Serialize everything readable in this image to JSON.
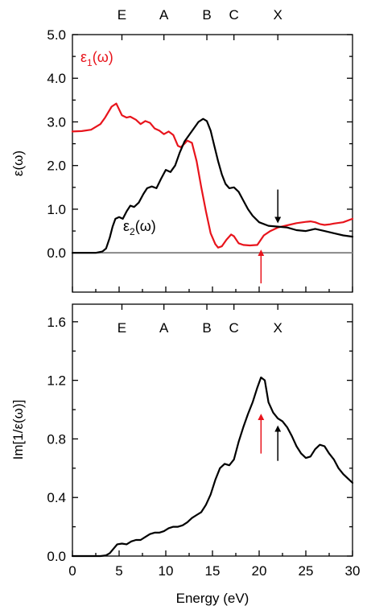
{
  "chart_data": [
    {
      "type": "line",
      "panel": "top",
      "ylabel": "ε(ω)",
      "xlim": [
        0,
        30
      ],
      "ylim": [
        -0.9,
        5.0
      ],
      "yticks": [
        0.0,
        1.0,
        2.0,
        3.0,
        4.0,
        5.0
      ],
      "ytick_labels": [
        "0.0",
        "1.0",
        "2.0",
        "3.0",
        "4.0",
        "5.0"
      ],
      "top_markers": [
        {
          "label": "E",
          "x": 5.3
        },
        {
          "label": "A",
          "x": 9.8
        },
        {
          "label": "B",
          "x": 14.4
        },
        {
          "label": "C",
          "x": 17.3
        },
        {
          "label": "X",
          "x": 22.0
        }
      ],
      "series": [
        {
          "name": "ε1(ω)",
          "label_parts": [
            "ε",
            "1",
            "(ω)"
          ],
          "color": "#e8141c",
          "x": [
            0,
            1,
            2,
            3,
            3.5,
            4.2,
            4.7,
            5.3,
            5.8,
            6.2,
            6.8,
            7.3,
            7.8,
            8.3,
            8.8,
            9.3,
            9.8,
            10.3,
            10.8,
            11.3,
            11.6,
            12.0,
            12.3,
            12.8,
            13.3,
            13.8,
            14.3,
            14.8,
            15.3,
            15.6,
            16.0,
            16.5,
            17.0,
            17.3,
            17.8,
            18.3,
            19.0,
            19.8,
            20.5,
            21.2,
            22.0,
            23.0,
            24.0,
            25.0,
            25.5,
            26.0,
            26.5,
            27.0,
            27.5,
            28.0,
            29.0,
            30.0
          ],
          "y": [
            2.78,
            2.79,
            2.82,
            2.95,
            3.1,
            3.35,
            3.42,
            3.15,
            3.1,
            3.12,
            3.05,
            2.95,
            3.02,
            2.98,
            2.85,
            2.8,
            2.72,
            2.78,
            2.7,
            2.45,
            2.42,
            2.5,
            2.57,
            2.52,
            2.1,
            1.5,
            0.95,
            0.45,
            0.2,
            0.12,
            0.15,
            0.3,
            0.42,
            0.38,
            0.22,
            0.18,
            0.17,
            0.18,
            0.4,
            0.5,
            0.58,
            0.63,
            0.68,
            0.71,
            0.72,
            0.7,
            0.66,
            0.64,
            0.65,
            0.67,
            0.7,
            0.78
          ]
        },
        {
          "name": "ε2(ω)",
          "label_parts": [
            "ε",
            "2",
            "(ω)"
          ],
          "color": "#000000",
          "x": [
            0,
            2.5,
            3.2,
            3.6,
            4.0,
            4.3,
            4.6,
            5.0,
            5.4,
            5.8,
            6.2,
            6.6,
            7.1,
            7.6,
            8.0,
            8.5,
            9.0,
            9.5,
            10.0,
            10.5,
            11.0,
            11.5,
            12.0,
            12.5,
            13.0,
            13.5,
            14.0,
            14.4,
            14.8,
            15.2,
            15.6,
            16.0,
            16.4,
            16.8,
            17.3,
            17.8,
            18.3,
            18.8,
            19.3,
            20.0,
            21.0,
            22.0,
            23.0,
            24.0,
            25.0,
            26.0,
            27.0,
            28.0,
            29.0,
            30.0
          ],
          "y": [
            0.0,
            0.0,
            0.03,
            0.1,
            0.35,
            0.6,
            0.78,
            0.82,
            0.78,
            0.95,
            1.08,
            1.05,
            1.15,
            1.35,
            1.48,
            1.52,
            1.48,
            1.7,
            1.9,
            1.85,
            2.0,
            2.3,
            2.55,
            2.7,
            2.85,
            3.0,
            3.07,
            3.02,
            2.8,
            2.45,
            2.1,
            1.8,
            1.58,
            1.48,
            1.5,
            1.4,
            1.2,
            1.0,
            0.85,
            0.7,
            0.62,
            0.6,
            0.58,
            0.52,
            0.5,
            0.55,
            0.5,
            0.45,
            0.4,
            0.37
          ]
        }
      ],
      "reference_lines": [
        {
          "y": 0.0,
          "color": "#888888"
        }
      ],
      "annotations": [
        {
          "type": "arrow",
          "direction": "up",
          "x": 20.2,
          "y_from": -0.7,
          "y_to": 0.0,
          "color": "#e8141c"
        },
        {
          "type": "arrow",
          "direction": "down",
          "x": 22.0,
          "y_from": 1.45,
          "y_to": 0.75,
          "color": "#000000"
        }
      ]
    },
    {
      "type": "line",
      "panel": "bottom",
      "xlabel": "Energy (eV)",
      "ylabel": "Im[1/ε(ω)]",
      "xlim": [
        0,
        30
      ],
      "ylim": [
        0.0,
        1.72
      ],
      "xticks": [
        0,
        5,
        10,
        15,
        20,
        25,
        30
      ],
      "xtick_labels": [
        "0",
        "5",
        "10",
        "15",
        "20",
        "25",
        "30"
      ],
      "yticks": [
        0.0,
        0.4,
        0.8,
        1.2,
        1.6
      ],
      "ytick_labels": [
        "0.0",
        "0.4",
        "0.8",
        "1.2",
        "1.6"
      ],
      "top_markers": [
        {
          "label": "E",
          "x": 5.3
        },
        {
          "label": "A",
          "x": 9.8
        },
        {
          "label": "B",
          "x": 14.4
        },
        {
          "label": "C",
          "x": 17.3
        },
        {
          "label": "X",
          "x": 22.0
        }
      ],
      "series": [
        {
          "color": "#000000",
          "x": [
            0,
            3.0,
            3.6,
            4.0,
            4.4,
            4.8,
            5.3,
            5.8,
            6.3,
            6.8,
            7.3,
            7.8,
            8.3,
            8.8,
            9.3,
            9.8,
            10.3,
            10.8,
            11.3,
            11.8,
            12.3,
            12.8,
            13.3,
            13.8,
            14.3,
            14.8,
            15.3,
            15.8,
            16.3,
            16.8,
            17.3,
            17.8,
            18.3,
            18.8,
            19.3,
            19.8,
            20.2,
            20.6,
            21.0,
            21.5,
            22.0,
            22.5,
            23.0,
            23.5,
            24.0,
            24.5,
            25.0,
            25.5,
            26.0,
            26.5,
            27.0,
            27.5,
            28.0,
            28.5,
            29.0,
            29.5,
            30.0
          ],
          "y": [
            0.0,
            0.0,
            0.005,
            0.02,
            0.05,
            0.08,
            0.085,
            0.08,
            0.1,
            0.11,
            0.11,
            0.13,
            0.15,
            0.16,
            0.16,
            0.17,
            0.19,
            0.2,
            0.2,
            0.21,
            0.23,
            0.26,
            0.28,
            0.3,
            0.35,
            0.42,
            0.52,
            0.6,
            0.63,
            0.62,
            0.66,
            0.78,
            0.88,
            0.97,
            1.05,
            1.15,
            1.22,
            1.2,
            1.05,
            0.98,
            0.94,
            0.92,
            0.88,
            0.82,
            0.75,
            0.7,
            0.67,
            0.68,
            0.73,
            0.76,
            0.75,
            0.7,
            0.66,
            0.6,
            0.56,
            0.53,
            0.5
          ]
        }
      ],
      "annotations": [
        {
          "type": "arrow",
          "direction": "up",
          "x": 20.2,
          "y_from": 0.7,
          "y_to": 0.95,
          "color": "#e8141c"
        },
        {
          "type": "arrow",
          "direction": "up",
          "x": 22.0,
          "y_from": 0.65,
          "y_to": 0.87,
          "color": "#000000"
        }
      ]
    }
  ]
}
